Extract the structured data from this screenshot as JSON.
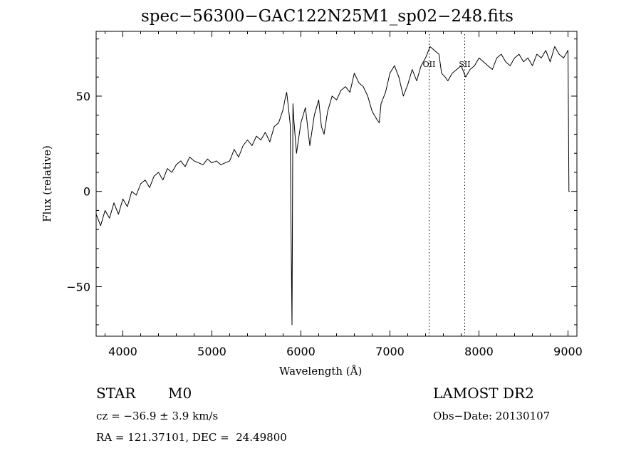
{
  "chart_data": {
    "type": "line",
    "title": "spec−56300−GAC122N25M1_sp02−248.fits",
    "xlabel": "Wavelength (Å)",
    "ylabel": "Flux (relative)",
    "xlim": [
      3700,
      9100
    ],
    "ylim": [
      -76,
      84
    ],
    "x_ticks": [
      4000,
      5000,
      6000,
      7000,
      8000,
      9000
    ],
    "y_ticks": [
      -50,
      0,
      50
    ],
    "y_tick_labels": [
      "−50",
      "0",
      "50"
    ],
    "grid": false,
    "series": [
      {
        "x": [
          3700,
          3750,
          3800,
          3850,
          3900,
          3950,
          4000,
          4050,
          4100,
          4150,
          4200,
          4250,
          4300,
          4350,
          4400,
          4450,
          4500,
          4550,
          4600,
          4650,
          4700,
          4750,
          4800,
          4850,
          4900,
          4950,
          5000,
          5050,
          5100,
          5150,
          5200,
          5250,
          5300,
          5350,
          5400,
          5450,
          5500,
          5550,
          5600,
          5650,
          5700,
          5750,
          5800,
          5820,
          5840,
          5860,
          5880,
          5890,
          5900,
          5910,
          5920,
          5950,
          6000,
          6050,
          6100,
          6150,
          6200,
          6230,
          6260,
          6300,
          6350,
          6400,
          6450,
          6500,
          6550,
          6600,
          6650,
          6700,
          6750,
          6800,
          6850,
          6880,
          6900,
          6950,
          7000,
          7050,
          7100,
          7150,
          7200,
          7250,
          7300,
          7350,
          7400,
          7450,
          7500,
          7550,
          7580,
          7620,
          7650,
          7700,
          7750,
          7800,
          7850,
          7900,
          7950,
          8000,
          8050,
          8100,
          8150,
          8200,
          8250,
          8300,
          8350,
          8400,
          8450,
          8500,
          8550,
          8600,
          8650,
          8700,
          8750,
          8800,
          8850,
          8900,
          8950,
          9000,
          9010,
          9020
        ],
        "y": [
          -12,
          -18,
          -10,
          -14,
          -6,
          -12,
          -4,
          -8,
          0,
          -2,
          4,
          6,
          2,
          8,
          10,
          6,
          12,
          10,
          14,
          16,
          13,
          18,
          16,
          15,
          14,
          17,
          15,
          16,
          14,
          15,
          16,
          22,
          18,
          24,
          27,
          24,
          29,
          27,
          31,
          26,
          34,
          36,
          43,
          48,
          52,
          44,
          35,
          -25,
          -70,
          46,
          38,
          20,
          36,
          44,
          24,
          40,
          48,
          34,
          30,
          42,
          50,
          48,
          53,
          55,
          52,
          62,
          57,
          55,
          50,
          42,
          38,
          36,
          46,
          52,
          62,
          66,
          60,
          50,
          56,
          64,
          58,
          66,
          70,
          76,
          74,
          72,
          62,
          60,
          58,
          62,
          64,
          66,
          60,
          64,
          66,
          70,
          68,
          66,
          64,
          70,
          72,
          68,
          66,
          70,
          72,
          68,
          70,
          66,
          72,
          70,
          74,
          68,
          76,
          72,
          70,
          74,
          0,
          0
        ]
      }
    ],
    "annotations": [
      {
        "label": "OII",
        "x": 7440
      },
      {
        "label": "SII",
        "x": 7840
      }
    ]
  },
  "info": {
    "class_label": "STAR",
    "subclass_label": "M0",
    "cz_text": "cz = −36.9 ± 3.9 km/s",
    "radec_text": "RA = 121.37101, DEC =  24.49800",
    "survey": "LAMOST DR2",
    "obs_date": "Obs−Date: 20130107"
  }
}
